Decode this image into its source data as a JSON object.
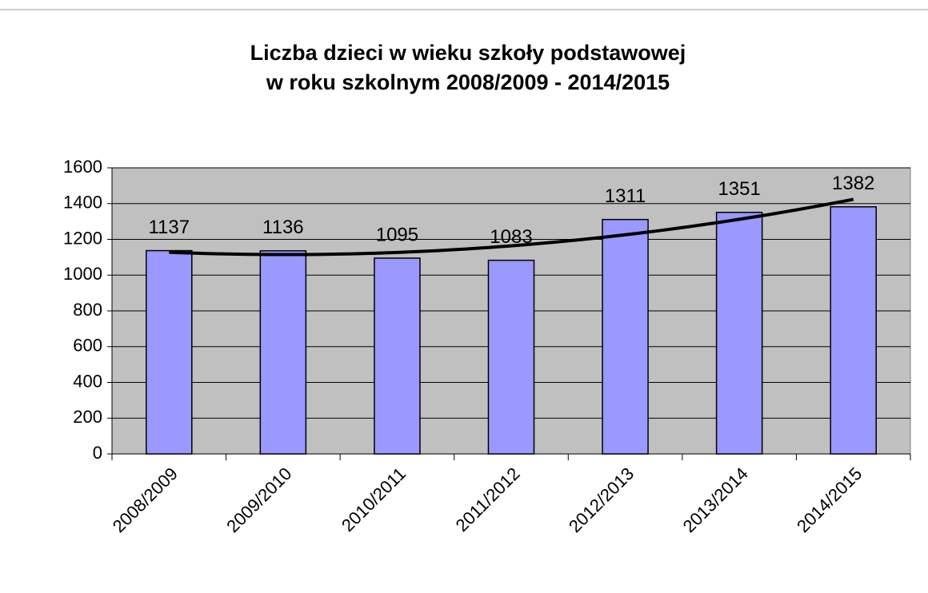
{
  "chart_data": {
    "type": "bar",
    "title": [
      "Liczba dzieci w wieku szkoły podstawowej",
      "w roku szkolnym 2008/2009 - 2014/2015"
    ],
    "categories": [
      "2008/2009",
      "2009/2010",
      "2010/2011",
      "2011/2012",
      "2012/2013",
      "2013/2014",
      "2014/2015"
    ],
    "values": [
      1137,
      1136,
      1095,
      1083,
      1311,
      1351,
      1382
    ],
    "color": "#9999ff",
    "ylim": [
      0,
      1600
    ],
    "yticks": [
      0,
      200,
      400,
      600,
      800,
      1000,
      1200,
      1400,
      1600
    ],
    "grid": true,
    "trendline": "polynomial"
  }
}
